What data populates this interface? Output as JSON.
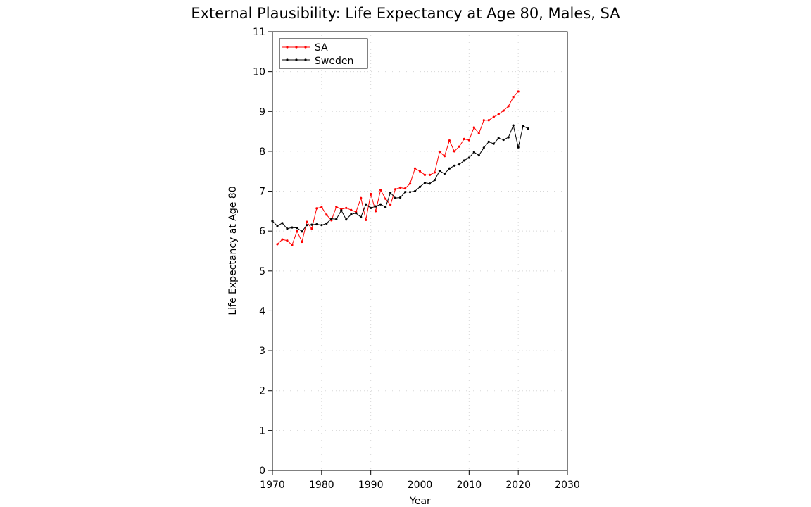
{
  "chart_data": {
    "type": "line",
    "title": "External Plausibility: Life Expectancy at Age 80, Males, SA",
    "xlabel": "Year",
    "ylabel": "Life Expectancy at Age 80",
    "xlim": [
      1970,
      2030
    ],
    "ylim": [
      0,
      11
    ],
    "xticks": [
      1970,
      1980,
      1990,
      2000,
      2010,
      2020,
      2030
    ],
    "yticks": [
      0,
      1,
      2,
      3,
      4,
      5,
      6,
      7,
      8,
      9,
      10,
      11
    ],
    "grid": true,
    "legend_position": "top-left",
    "series": [
      {
        "name": "SA",
        "color": "#ff0000",
        "x": [
          1971,
          1972,
          1973,
          1974,
          1975,
          1976,
          1977,
          1978,
          1979,
          1980,
          1981,
          1982,
          1983,
          1984,
          1985,
          1986,
          1987,
          1988,
          1989,
          1990,
          1991,
          1992,
          1993,
          1994,
          1995,
          1996,
          1997,
          1998,
          1999,
          2000,
          2001,
          2002,
          2003,
          2004,
          2005,
          2006,
          2007,
          2008,
          2009,
          2010,
          2011,
          2012,
          2013,
          2014,
          2015,
          2016,
          2017,
          2018,
          2019,
          2020
        ],
        "y": [
          5.67,
          5.79,
          5.76,
          5.65,
          6.0,
          5.73,
          6.23,
          6.06,
          6.57,
          6.6,
          6.41,
          6.27,
          6.61,
          6.55,
          6.58,
          6.53,
          6.48,
          6.83,
          6.28,
          6.93,
          6.5,
          7.03,
          6.81,
          6.66,
          7.05,
          7.09,
          7.07,
          7.19,
          7.57,
          7.5,
          7.41,
          7.41,
          7.47,
          7.99,
          7.88,
          8.27,
          8.0,
          8.12,
          8.31,
          8.28,
          8.6,
          8.45,
          8.78,
          8.78,
          8.86,
          8.93,
          9.02,
          9.13,
          9.36,
          9.5
        ]
      },
      {
        "name": "Sweden",
        "color": "#000000",
        "x": [
          1970,
          1971,
          1972,
          1973,
          1974,
          1975,
          1976,
          1977,
          1978,
          1979,
          1980,
          1981,
          1982,
          1983,
          1984,
          1985,
          1986,
          1987,
          1988,
          1989,
          1990,
          1991,
          1992,
          1993,
          1994,
          1995,
          1996,
          1997,
          1998,
          1999,
          2000,
          2001,
          2002,
          2003,
          2004,
          2005,
          2006,
          2007,
          2008,
          2009,
          2010,
          2011,
          2012,
          2013,
          2014,
          2015,
          2016,
          2017,
          2018,
          2019,
          2020,
          2021,
          2022
        ],
        "y": [
          6.25,
          6.13,
          6.2,
          6.06,
          6.09,
          6.08,
          5.99,
          6.15,
          6.16,
          6.17,
          6.15,
          6.19,
          6.31,
          6.3,
          6.52,
          6.29,
          6.42,
          6.45,
          6.35,
          6.67,
          6.58,
          6.62,
          6.67,
          6.6,
          6.96,
          6.83,
          6.84,
          6.98,
          6.98,
          7.0,
          7.11,
          7.21,
          7.19,
          7.28,
          7.51,
          7.44,
          7.57,
          7.64,
          7.67,
          7.77,
          7.84,
          7.98,
          7.9,
          8.09,
          8.24,
          8.19,
          8.33,
          8.29,
          8.35,
          8.65,
          8.1,
          8.64,
          8.57
        ]
      }
    ]
  }
}
